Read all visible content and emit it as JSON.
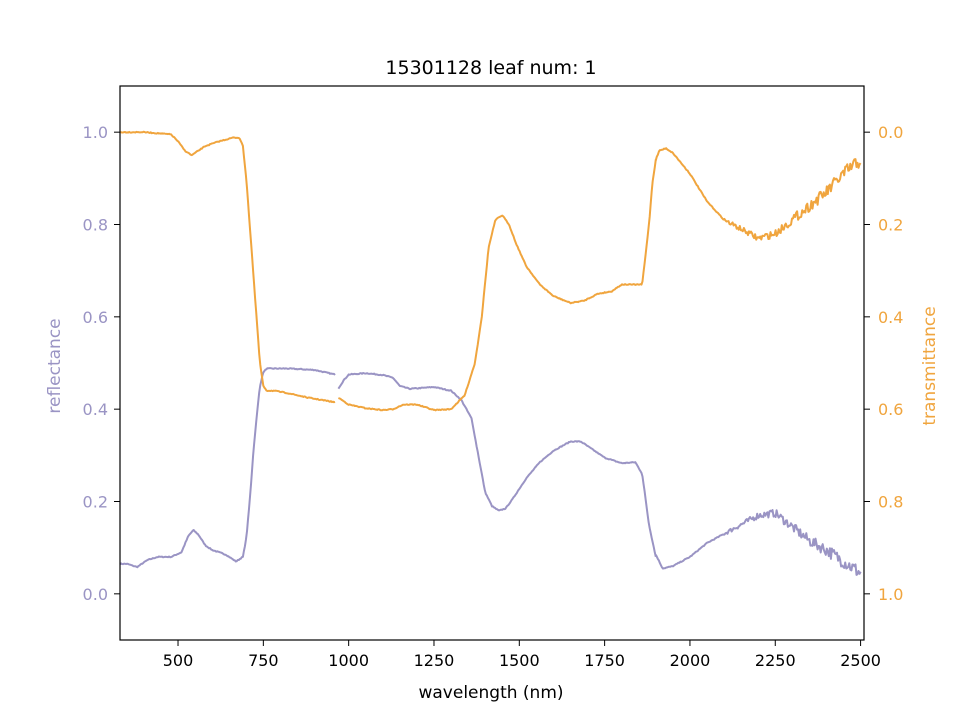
{
  "chart_data": {
    "type": "line",
    "title": "15301128 leaf num: 1",
    "xlabel": "wavelength (nm)",
    "ylabel_left": "reflectance",
    "ylabel_right": "transmittance",
    "xlim": [
      330,
      2510
    ],
    "ylim_left": [
      -0.1,
      1.1
    ],
    "ylim_right_inverted": [
      1.1,
      -0.1
    ],
    "x_ticks": [
      500,
      750,
      1000,
      1250,
      1500,
      1750,
      2000,
      2250,
      2500
    ],
    "y_ticks_left": [
      "0.0",
      "0.2",
      "0.4",
      "0.6",
      "0.8",
      "1.0"
    ],
    "y_ticks_right": [
      "0.0",
      "0.2",
      "0.4",
      "0.6",
      "0.8",
      "1.0"
    ],
    "grid": false,
    "colors": {
      "reflectance": "#9a94c4",
      "transmittance": "#f0a53e",
      "axis": "#000000"
    },
    "series": [
      {
        "key": "reflectance",
        "axis": "left",
        "noisy_from": 2100,
        "segments": [
          {
            "x": [
              330,
              350,
              380,
              410,
              440,
              480,
              510,
              530,
              545,
              560,
              580,
              600,
              640,
              670,
              690,
              700,
              710,
              720,
              730,
              740,
              750,
              760,
              780,
              820,
              900,
              960
            ],
            "y": [
              0.065,
              0.065,
              0.058,
              0.073,
              0.08,
              0.08,
              0.09,
              0.125,
              0.138,
              0.128,
              0.105,
              0.095,
              0.085,
              0.07,
              0.08,
              0.12,
              0.2,
              0.3,
              0.38,
              0.45,
              0.48,
              0.488,
              0.488,
              0.488,
              0.485,
              0.475
            ]
          },
          {
            "x": [
              970,
              985,
              1000,
              1050,
              1100,
              1130,
              1150,
              1180,
              1250,
              1300,
              1330,
              1360,
              1380,
              1400,
              1420,
              1440,
              1460,
              1480,
              1520,
              1560,
              1600,
              1650,
              1680,
              1720,
              1750,
              1800,
              1840,
              1860,
              1880,
              1900
            ],
            "y": [
              0.445,
              0.462,
              0.475,
              0.478,
              0.474,
              0.468,
              0.45,
              0.444,
              0.448,
              0.44,
              0.42,
              0.38,
              0.3,
              0.22,
              0.19,
              0.18,
              0.185,
              0.205,
              0.25,
              0.285,
              0.31,
              0.33,
              0.33,
              0.31,
              0.295,
              0.283,
              0.285,
              0.26,
              0.15,
              0.08
            ]
          },
          {
            "x": [
              1900,
              1920,
              1950,
              2000,
              2050,
              2100,
              2150,
              2200,
              2250,
              2300,
              2350,
              2400,
              2450,
              2500
            ],
            "y": [
              0.085,
              0.055,
              0.06,
              0.08,
              0.11,
              0.13,
              0.15,
              0.17,
              0.175,
              0.145,
              0.115,
              0.095,
              0.07,
              0.045
            ]
          }
        ]
      },
      {
        "key": "transmittance",
        "axis": "right",
        "noisy_from": 2100,
        "segments": [
          {
            "x": [
              330,
              350,
              400,
              450,
              480,
              500,
              520,
              540,
              560,
              580,
              620,
              660,
              680,
              690,
              700,
              710,
              720,
              730,
              740,
              750,
              760,
              780,
              820,
              880,
              960
            ],
            "y": [
              0.0,
              0.0,
              0.0,
              0.003,
              0.005,
              0.02,
              0.04,
              0.05,
              0.04,
              0.03,
              0.02,
              0.012,
              0.012,
              0.03,
              0.1,
              0.2,
              0.3,
              0.4,
              0.5,
              0.55,
              0.56,
              0.56,
              0.565,
              0.575,
              0.585
            ]
          },
          {
            "x": [
              970,
              1000,
              1050,
              1100,
              1130,
              1160,
              1200,
              1250,
              1300,
              1340,
              1370,
              1390,
              1410,
              1430,
              1450,
              1470,
              1490,
              1520,
              1560,
              1600,
              1650,
              1690,
              1730,
              1770,
              1800,
              1860,
              1880,
              1890,
              1900
            ],
            "y": [
              0.575,
              0.59,
              0.598,
              0.602,
              0.6,
              0.59,
              0.59,
              0.602,
              0.6,
              0.57,
              0.5,
              0.4,
              0.25,
              0.19,
              0.18,
              0.2,
              0.24,
              0.29,
              0.33,
              0.355,
              0.37,
              0.365,
              0.35,
              0.345,
              0.33,
              0.33,
              0.2,
              0.11,
              0.06
            ]
          },
          {
            "x": [
              1900,
              1910,
              1930,
              1950,
              2000,
              2050,
              2100,
              2150,
              2200,
              2250,
              2300,
              2350,
              2400,
              2450,
              2500
            ],
            "y": [
              0.06,
              0.04,
              0.035,
              0.045,
              0.09,
              0.15,
              0.19,
              0.21,
              0.23,
              0.22,
              0.19,
              0.16,
              0.13,
              0.09,
              0.06
            ]
          }
        ]
      }
    ]
  }
}
